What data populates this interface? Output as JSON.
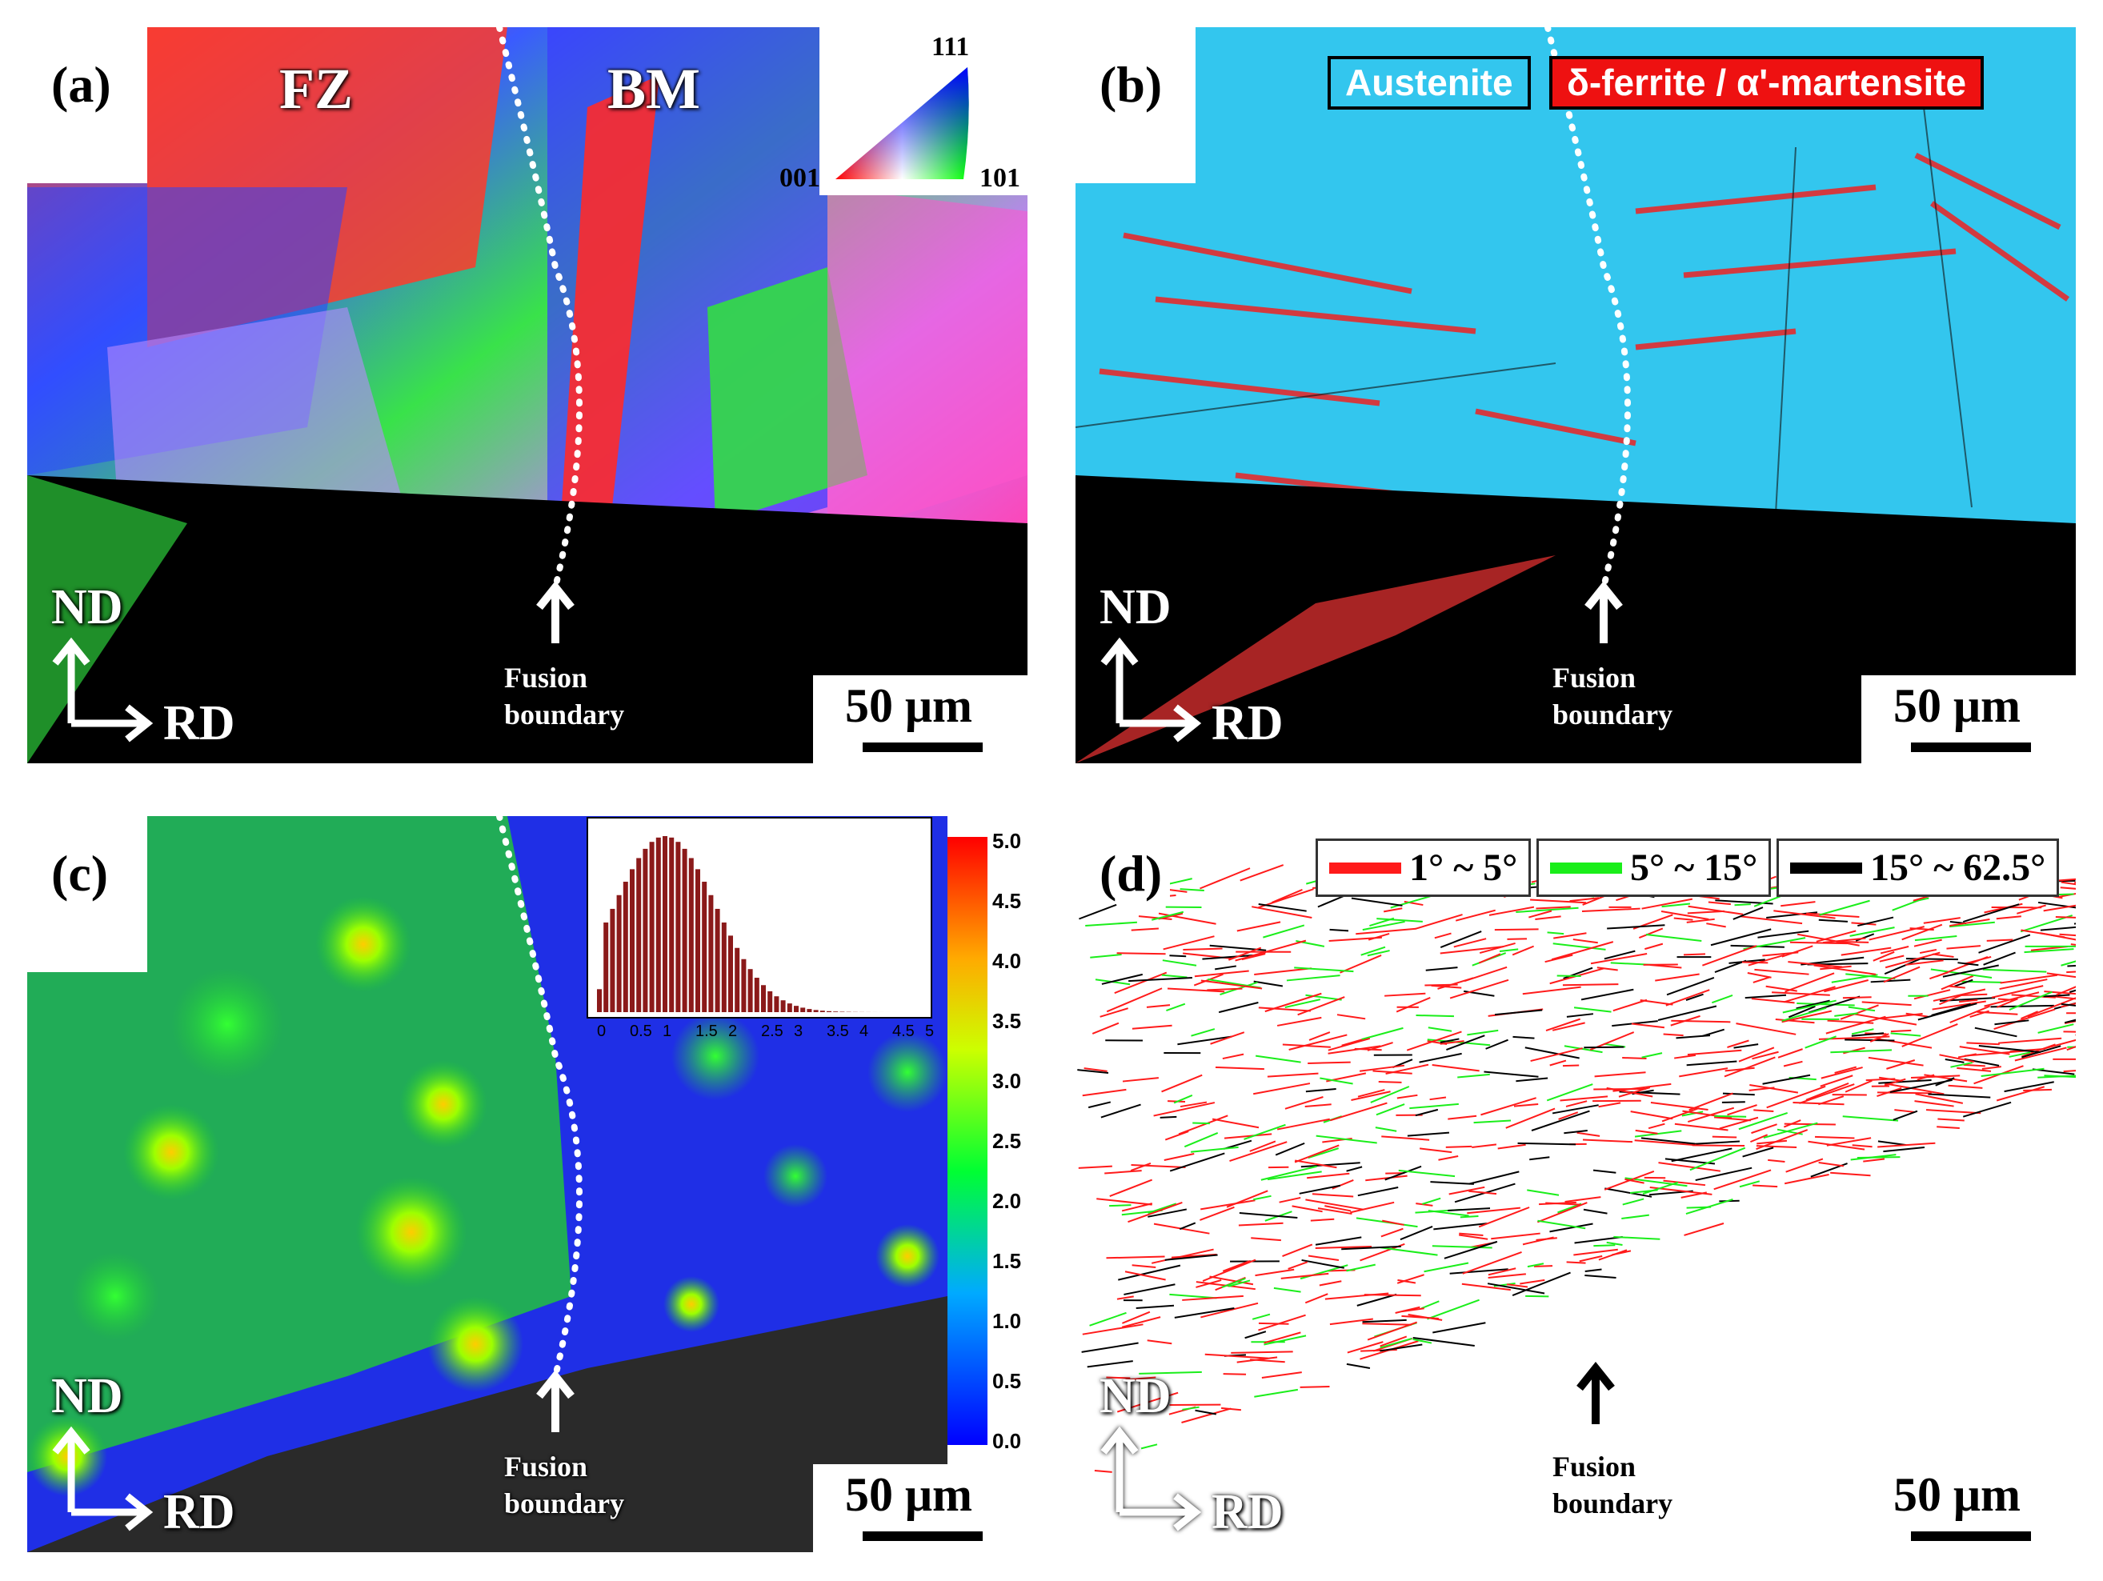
{
  "panels": {
    "a": {
      "label": "(a)",
      "zone_fz": "FZ",
      "zone_bm": "BM",
      "ipf": {
        "top": "111",
        "left": "001",
        "right": "101"
      }
    },
    "b": {
      "label": "(b)",
      "legend": [
        {
          "text": "Austenite",
          "color": "#33c6ee"
        },
        {
          "text": "δ-ferrite / α'-martensite",
          "color": "#ee1111"
        }
      ]
    },
    "c": {
      "label": "(c)",
      "colorbar_ticks": [
        "5.0",
        "4.5",
        "4.0",
        "3.5",
        "3.0",
        "2.5",
        "2.0",
        "1.5",
        "1.0",
        "0.5",
        "0.0"
      ],
      "hist_ticks": [
        "0",
        "0.5",
        "1",
        "1.5",
        "2",
        "2.5",
        "3",
        "3.5",
        "4",
        "4.5",
        "5"
      ]
    },
    "d": {
      "label": "(d)",
      "legend": [
        {
          "text": "1° ~ 5°",
          "color": "#ff1a1a"
        },
        {
          "text": "5° ~ 15°",
          "color": "#1aee1a"
        },
        {
          "text": "15° ~ 62.5°",
          "color": "#000000"
        }
      ]
    }
  },
  "common": {
    "axis_nd": "ND",
    "axis_rd": "RD",
    "fusion_line1": "Fusion",
    "fusion_line2": "boundary",
    "scale": "50 μm"
  },
  "colors": {
    "austenite": "#33c6ee",
    "ferrite": "#ee1111",
    "hagb": "#000000",
    "lagb_low": "#ff1a1a",
    "lagb_mid": "#1aee1a"
  }
}
